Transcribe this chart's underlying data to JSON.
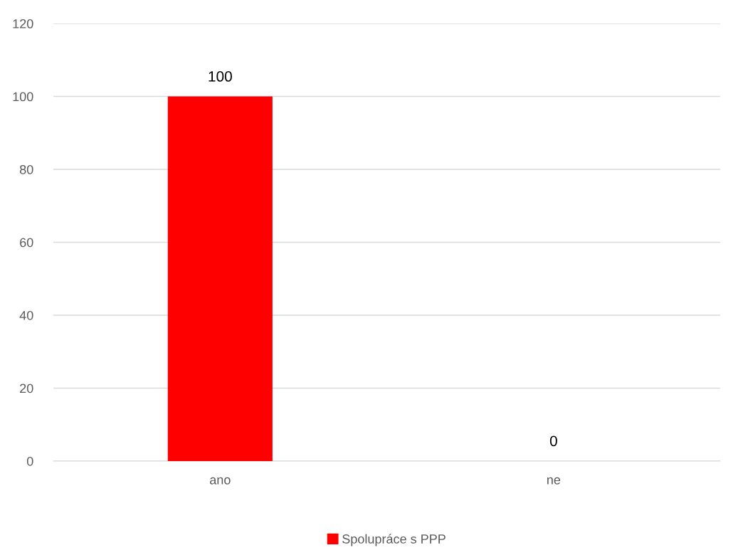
{
  "chart_data": {
    "type": "bar",
    "categories": [
      "ano",
      "ne"
    ],
    "series": [
      {
        "name": "Spolupráce s PPP",
        "color": "#ff0000",
        "values": [
          100,
          0
        ]
      }
    ],
    "ylim": [
      0,
      120
    ],
    "yticks": [
      0,
      20,
      40,
      60,
      80,
      100,
      120
    ],
    "grid": "y",
    "legend": "bottom",
    "data_labels": true
  }
}
